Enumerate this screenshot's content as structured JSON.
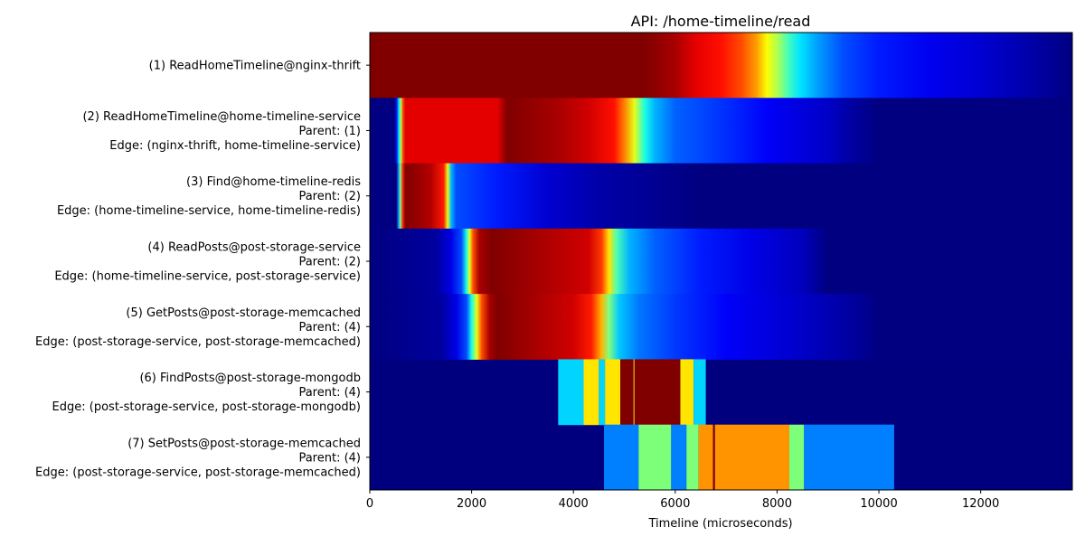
{
  "chart_data": {
    "type": "heatmap",
    "title": "API: /home-timeline/read",
    "xlabel": "Timeline (microseconds)",
    "ylabel": "",
    "xlim": [
      0,
      13800
    ],
    "x_ticks": [
      0,
      2000,
      4000,
      6000,
      8000,
      10000,
      12000
    ],
    "x_tick_labels": [
      "0",
      "2000",
      "4000",
      "6000",
      "8000",
      "10000",
      "12000"
    ],
    "colormap": "jet",
    "background_color": "#00007f",
    "grid": false,
    "legend": "none",
    "rows": [
      {
        "labels": [
          "(1) ReadHomeTimeline@nginx-thrift"
        ],
        "stops": [
          [
            0,
            1.0
          ],
          [
            5400,
            1.0
          ],
          [
            6000,
            0.96
          ],
          [
            6400,
            0.9
          ],
          [
            6900,
            0.86
          ],
          [
            7300,
            0.8
          ],
          [
            7600,
            0.72
          ],
          [
            7800,
            0.62
          ],
          [
            8000,
            0.55
          ],
          [
            8200,
            0.45
          ],
          [
            8450,
            0.35
          ],
          [
            8800,
            0.28
          ],
          [
            9300,
            0.2
          ],
          [
            10000,
            0.15
          ],
          [
            11000,
            0.11
          ],
          [
            12000,
            0.08
          ],
          [
            13000,
            0.04
          ],
          [
            13800,
            0.0
          ]
        ]
      },
      {
        "labels": [
          "(2) ReadHomeTimeline@home-timeline-service",
          "Parent: (1)",
          "Edge: (nginx-thrift, home-timeline-service)"
        ],
        "stops": [
          [
            0,
            0.0
          ],
          [
            480,
            0.0
          ],
          [
            530,
            0.15
          ],
          [
            570,
            0.35
          ],
          [
            610,
            0.55
          ],
          [
            650,
            0.8
          ],
          [
            700,
            0.9
          ],
          [
            2500,
            0.9
          ],
          [
            2700,
            1.0
          ],
          [
            3700,
            0.96
          ],
          [
            4300,
            0.92
          ],
          [
            4800,
            0.86
          ],
          [
            5000,
            0.75
          ],
          [
            5200,
            0.6
          ],
          [
            5400,
            0.4
          ],
          [
            5600,
            0.3
          ],
          [
            6000,
            0.22
          ],
          [
            6800,
            0.18
          ],
          [
            7800,
            0.12
          ],
          [
            9000,
            0.07
          ],
          [
            9500,
            0.03
          ],
          [
            10000,
            0.0
          ],
          [
            13800,
            0.0
          ]
        ]
      },
      {
        "labels": [
          "(3) Find@home-timeline-redis",
          "Parent: (2)",
          "Edge: (home-timeline-service, home-timeline-redis)"
        ],
        "stops": [
          [
            0,
            0.0
          ],
          [
            520,
            0.0
          ],
          [
            560,
            0.25
          ],
          [
            600,
            0.5
          ],
          [
            650,
            0.85
          ],
          [
            700,
            1.0
          ],
          [
            1200,
            0.95
          ],
          [
            1450,
            0.85
          ],
          [
            1530,
            0.6
          ],
          [
            1600,
            0.3
          ],
          [
            1700,
            0.2
          ],
          [
            2500,
            0.15
          ],
          [
            3500,
            0.08
          ],
          [
            4500,
            0.04
          ],
          [
            5500,
            0.02
          ],
          [
            6500,
            0.0
          ],
          [
            13800,
            0.0
          ]
        ]
      },
      {
        "labels": [
          "(4) ReadPosts@post-storage-service",
          "Parent: (2)",
          "Edge: (home-timeline-service, post-storage-service)"
        ],
        "stops": [
          [
            0,
            0.0
          ],
          [
            1300,
            0.03
          ],
          [
            1600,
            0.1
          ],
          [
            1800,
            0.2
          ],
          [
            1900,
            0.4
          ],
          [
            1960,
            0.6
          ],
          [
            2030,
            0.8
          ],
          [
            2150,
            0.96
          ],
          [
            2400,
            1.0
          ],
          [
            4300,
            0.92
          ],
          [
            4550,
            0.82
          ],
          [
            4700,
            0.65
          ],
          [
            4850,
            0.45
          ],
          [
            5100,
            0.3
          ],
          [
            5600,
            0.22
          ],
          [
            6500,
            0.15
          ],
          [
            7500,
            0.1
          ],
          [
            8500,
            0.06
          ],
          [
            9000,
            0.0
          ],
          [
            13800,
            0.0
          ]
        ]
      },
      {
        "labels": [
          "(5) GetPosts@post-storage-memcached",
          "Parent: (4)",
          "Edge: (post-storage-service, post-storage-memcached)"
        ],
        "stops": [
          [
            0,
            0.0
          ],
          [
            1400,
            0.03
          ],
          [
            1700,
            0.1
          ],
          [
            1900,
            0.2
          ],
          [
            2000,
            0.4
          ],
          [
            2100,
            0.6
          ],
          [
            2200,
            0.8
          ],
          [
            2350,
            0.96
          ],
          [
            2500,
            1.0
          ],
          [
            4000,
            0.92
          ],
          [
            4350,
            0.85
          ],
          [
            4550,
            0.7
          ],
          [
            4700,
            0.5
          ],
          [
            4900,
            0.32
          ],
          [
            5300,
            0.24
          ],
          [
            6000,
            0.18
          ],
          [
            7000,
            0.12
          ],
          [
            8500,
            0.07
          ],
          [
            9500,
            0.03
          ],
          [
            10000,
            0.0
          ],
          [
            13800,
            0.0
          ]
        ]
      },
      {
        "labels": [
          "(6) FindPosts@post-storage-mongodb",
          "Parent: (4)",
          "Edge: (post-storage-service, post-storage-mongodb)"
        ],
        "segments": [
          [
            3700,
            4200,
            "#00d4ff"
          ],
          [
            4200,
            4500,
            "#ffe500"
          ],
          [
            4500,
            4620,
            "#00d4ff"
          ],
          [
            4620,
            4920,
            "#ffe500"
          ],
          [
            4920,
            5180,
            "#800000"
          ],
          [
            5180,
            5200,
            "#ffe500"
          ],
          [
            5200,
            6100,
            "#800000"
          ],
          [
            6100,
            6360,
            "#ffe500"
          ],
          [
            6360,
            6600,
            "#00d4ff"
          ]
        ]
      },
      {
        "labels": [
          "(7) SetPosts@post-storage-memcached",
          "Parent: (4)",
          "Edge: (post-storage-service, post-storage-memcached)"
        ],
        "segments": [
          [
            4600,
            5280,
            "#0080ff"
          ],
          [
            5280,
            5920,
            "#7dff7a"
          ],
          [
            5920,
            6220,
            "#0080ff"
          ],
          [
            6220,
            6460,
            "#7dff7a"
          ],
          [
            6460,
            6740,
            "#ff9400"
          ],
          [
            6740,
            6780,
            "#800000"
          ],
          [
            6780,
            8240,
            "#ff9400"
          ],
          [
            8240,
            8530,
            "#7dff7a"
          ],
          [
            8530,
            10300,
            "#0080ff"
          ]
        ]
      }
    ]
  }
}
